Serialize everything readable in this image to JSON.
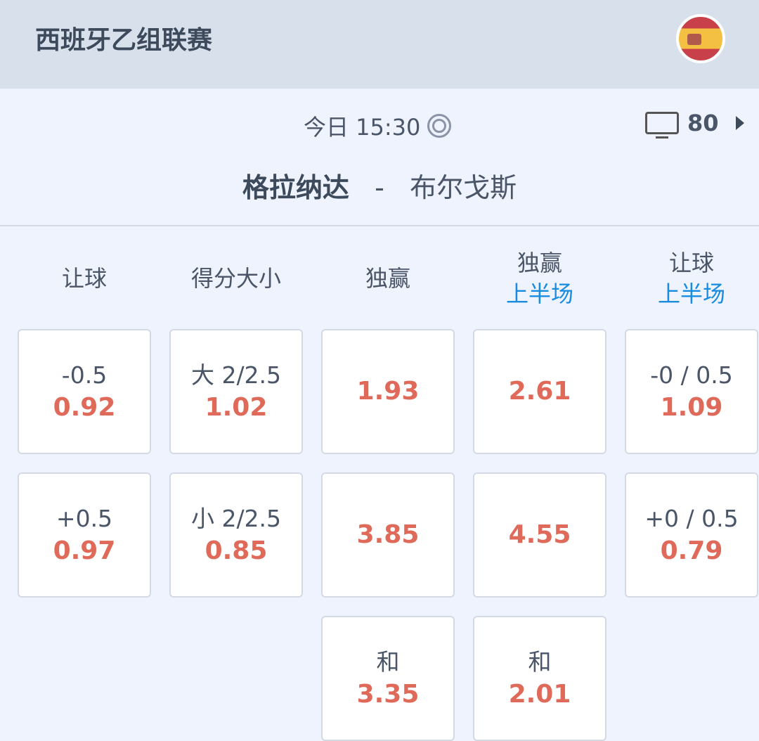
{
  "header": {
    "league": "西班牙乙组联赛",
    "flag_icon": "spain-flag"
  },
  "match": {
    "time": "今日 15:30",
    "tv_count": "80",
    "home": "格拉纳达",
    "separator": "-",
    "away": "布尔戈斯"
  },
  "columns": [
    {
      "title": "让球",
      "sub": ""
    },
    {
      "title": "得分大小",
      "sub": ""
    },
    {
      "title": "独赢",
      "sub": ""
    },
    {
      "title": "独赢",
      "sub": "上半场"
    },
    {
      "title": "让球",
      "sub": "上半场"
    }
  ],
  "cells": [
    [
      {
        "label": "-0.5",
        "odds": "0.92"
      },
      {
        "label": "+0.5",
        "odds": "0.97"
      }
    ],
    [
      {
        "label": "大 2/2.5",
        "odds": "1.02"
      },
      {
        "label": "小 2/2.5",
        "odds": "0.85"
      }
    ],
    [
      {
        "label": "",
        "odds": "1.93"
      },
      {
        "label": "",
        "odds": "3.85"
      },
      {
        "label": "和",
        "odds": "3.35"
      }
    ],
    [
      {
        "label": "",
        "odds": "2.61"
      },
      {
        "label": "",
        "odds": "4.55"
      },
      {
        "label": "和",
        "odds": "2.01"
      }
    ],
    [
      {
        "label": "-0 / 0.5",
        "odds": "1.09"
      },
      {
        "label": "+0 / 0.5",
        "odds": "0.79"
      }
    ]
  ],
  "colors": {
    "odds": "#e06a5a",
    "accent": "#1a8ce0",
    "header_bg": "#d8e0ec"
  }
}
